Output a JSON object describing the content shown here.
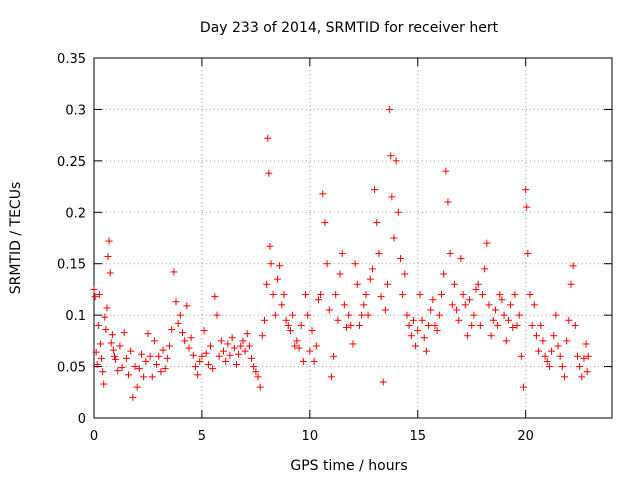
{
  "chart_data": {
    "type": "scatter",
    "title": "Day 233 of 2014, SRMTID for receiver hert",
    "xlabel": "GPS time / hours",
    "ylabel": "SRMTID / TECUs",
    "xlim": [
      0,
      24
    ],
    "ylim": [
      0,
      0.35
    ],
    "x_ticks": [
      0,
      5,
      10,
      15,
      20
    ],
    "x_tick_labels": [
      "0",
      "5",
      "10",
      "15",
      "20"
    ],
    "y_ticks": [
      0,
      0.05,
      0.1,
      0.15,
      0.2,
      0.25,
      0.3,
      0.35
    ],
    "y_tick_labels": [
      "0",
      "0.05",
      "0.1",
      "0.15",
      "0.2",
      "0.25",
      "0.3",
      "0.35"
    ],
    "grid": true,
    "marker": "+",
    "color": "#ff0000",
    "series": [
      {
        "name": "SRMTID",
        "points": [
          [
            0.0,
            0.125
          ],
          [
            0.05,
            0.118
          ],
          [
            0.1,
            0.064
          ],
          [
            0.15,
            0.052
          ],
          [
            0.2,
            0.09
          ],
          [
            0.25,
            0.12
          ],
          [
            0.3,
            0.072
          ],
          [
            0.35,
            0.058
          ],
          [
            0.4,
            0.045
          ],
          [
            0.45,
            0.033
          ],
          [
            0.5,
            0.098
          ],
          [
            0.55,
            0.086
          ],
          [
            0.6,
            0.107
          ],
          [
            0.65,
            0.157
          ],
          [
            0.7,
            0.172
          ],
          [
            0.75,
            0.141
          ],
          [
            0.8,
            0.073
          ],
          [
            0.85,
            0.081
          ],
          [
            0.9,
            0.066
          ],
          [
            0.95,
            0.06
          ],
          [
            1.0,
            0.057
          ],
          [
            1.1,
            0.046
          ],
          [
            1.2,
            0.07
          ],
          [
            1.3,
            0.049
          ],
          [
            1.4,
            0.083
          ],
          [
            1.5,
            0.058
          ],
          [
            1.6,
            0.042
          ],
          [
            1.7,
            0.065
          ],
          [
            1.8,
            0.02
          ],
          [
            1.9,
            0.05
          ],
          [
            2.0,
            0.03
          ],
          [
            2.1,
            0.048
          ],
          [
            2.2,
            0.062
          ],
          [
            2.3,
            0.04
          ],
          [
            2.4,
            0.055
          ],
          [
            2.5,
            0.082
          ],
          [
            2.6,
            0.06
          ],
          [
            2.7,
            0.04
          ],
          [
            2.8,
            0.075
          ],
          [
            2.9,
            0.052
          ],
          [
            3.0,
            0.06
          ],
          [
            3.1,
            0.045
          ],
          [
            3.2,
            0.066
          ],
          [
            3.3,
            0.048
          ],
          [
            3.4,
            0.058
          ],
          [
            3.5,
            0.07
          ],
          [
            3.6,
            0.086
          ],
          [
            3.7,
            0.142
          ],
          [
            3.8,
            0.113
          ],
          [
            3.9,
            0.092
          ],
          [
            4.0,
            0.1
          ],
          [
            4.1,
            0.083
          ],
          [
            4.2,
            0.075
          ],
          [
            4.3,
            0.109
          ],
          [
            4.4,
            0.068
          ],
          [
            4.5,
            0.078
          ],
          [
            4.6,
            0.061
          ],
          [
            4.7,
            0.05
          ],
          [
            4.8,
            0.042
          ],
          [
            4.9,
            0.055
          ],
          [
            5.0,
            0.06
          ],
          [
            5.1,
            0.085
          ],
          [
            5.2,
            0.063
          ],
          [
            5.3,
            0.052
          ],
          [
            5.4,
            0.07
          ],
          [
            5.5,
            0.048
          ],
          [
            5.6,
            0.118
          ],
          [
            5.7,
            0.1
          ],
          [
            5.8,
            0.06
          ],
          [
            5.9,
            0.075
          ],
          [
            6.0,
            0.065
          ],
          [
            6.1,
            0.055
          ],
          [
            6.2,
            0.072
          ],
          [
            6.3,
            0.061
          ],
          [
            6.4,
            0.078
          ],
          [
            6.5,
            0.068
          ],
          [
            6.6,
            0.052
          ],
          [
            6.7,
            0.062
          ],
          [
            6.8,
            0.07
          ],
          [
            6.9,
            0.075
          ],
          [
            7.0,
            0.065
          ],
          [
            7.1,
            0.082
          ],
          [
            7.2,
            0.07
          ],
          [
            7.3,
            0.058
          ],
          [
            7.4,
            0.05
          ],
          [
            7.5,
            0.045
          ],
          [
            7.6,
            0.04
          ],
          [
            7.7,
            0.03
          ],
          [
            7.8,
            0.08
          ],
          [
            7.9,
            0.095
          ],
          [
            8.0,
            0.13
          ],
          [
            8.05,
            0.272
          ],
          [
            8.1,
            0.238
          ],
          [
            8.15,
            0.167
          ],
          [
            8.2,
            0.15
          ],
          [
            8.3,
            0.12
          ],
          [
            8.4,
            0.1
          ],
          [
            8.5,
            0.135
          ],
          [
            8.6,
            0.148
          ],
          [
            8.7,
            0.11
          ],
          [
            8.8,
            0.12
          ],
          [
            8.9,
            0.095
          ],
          [
            9.0,
            0.09
          ],
          [
            9.1,
            0.085
          ],
          [
            9.2,
            0.1
          ],
          [
            9.3,
            0.07
          ],
          [
            9.4,
            0.075
          ],
          [
            9.5,
            0.068
          ],
          [
            9.6,
            0.09
          ],
          [
            9.7,
            0.055
          ],
          [
            9.8,
            0.12
          ],
          [
            9.9,
            0.1
          ],
          [
            10.0,
            0.065
          ],
          [
            10.1,
            0.085
          ],
          [
            10.2,
            0.055
          ],
          [
            10.3,
            0.07
          ],
          [
            10.4,
            0.115
          ],
          [
            10.5,
            0.12
          ],
          [
            10.6,
            0.218
          ],
          [
            10.7,
            0.19
          ],
          [
            10.8,
            0.15
          ],
          [
            10.9,
            0.105
          ],
          [
            11.0,
            0.04
          ],
          [
            11.1,
            0.06
          ],
          [
            11.2,
            0.12
          ],
          [
            11.3,
            0.095
          ],
          [
            11.4,
            0.14
          ],
          [
            11.5,
            0.16
          ],
          [
            11.6,
            0.11
          ],
          [
            11.7,
            0.088
          ],
          [
            11.8,
            0.1
          ],
          [
            11.9,
            0.09
          ],
          [
            12.0,
            0.072
          ],
          [
            12.1,
            0.15
          ],
          [
            12.2,
            0.13
          ],
          [
            12.3,
            0.09
          ],
          [
            12.4,
            0.1
          ],
          [
            12.5,
            0.11
          ],
          [
            12.6,
            0.12
          ],
          [
            12.7,
            0.1
          ],
          [
            12.8,
            0.135
          ],
          [
            12.9,
            0.145
          ],
          [
            13.0,
            0.222
          ],
          [
            13.1,
            0.19
          ],
          [
            13.2,
            0.16
          ],
          [
            13.3,
            0.118
          ],
          [
            13.4,
            0.035
          ],
          [
            13.5,
            0.105
          ],
          [
            13.6,
            0.13
          ],
          [
            13.7,
            0.3
          ],
          [
            13.75,
            0.255
          ],
          [
            13.8,
            0.215
          ],
          [
            13.9,
            0.175
          ],
          [
            14.0,
            0.25
          ],
          [
            14.1,
            0.2
          ],
          [
            14.2,
            0.155
          ],
          [
            14.3,
            0.12
          ],
          [
            14.4,
            0.14
          ],
          [
            14.5,
            0.1
          ],
          [
            14.6,
            0.09
          ],
          [
            14.7,
            0.08
          ],
          [
            14.8,
            0.095
          ],
          [
            14.9,
            0.07
          ],
          [
            15.0,
            0.085
          ],
          [
            15.1,
            0.12
          ],
          [
            15.2,
            0.095
          ],
          [
            15.3,
            0.078
          ],
          [
            15.4,
            0.065
          ],
          [
            15.5,
            0.09
          ],
          [
            15.6,
            0.105
          ],
          [
            15.7,
            0.115
          ],
          [
            15.8,
            0.09
          ],
          [
            15.9,
            0.085
          ],
          [
            16.0,
            0.1
          ],
          [
            16.1,
            0.12
          ],
          [
            16.2,
            0.14
          ],
          [
            16.3,
            0.24
          ],
          [
            16.4,
            0.21
          ],
          [
            16.5,
            0.16
          ],
          [
            16.6,
            0.11
          ],
          [
            16.7,
            0.13
          ],
          [
            16.8,
            0.105
          ],
          [
            16.9,
            0.095
          ],
          [
            17.0,
            0.155
          ],
          [
            17.1,
            0.12
          ],
          [
            17.2,
            0.11
          ],
          [
            17.3,
            0.08
          ],
          [
            17.4,
            0.115
          ],
          [
            17.5,
            0.09
          ],
          [
            17.6,
            0.1
          ],
          [
            17.7,
            0.125
          ],
          [
            17.8,
            0.13
          ],
          [
            17.9,
            0.09
          ],
          [
            18.0,
            0.12
          ],
          [
            18.1,
            0.145
          ],
          [
            18.2,
            0.17
          ],
          [
            18.3,
            0.11
          ],
          [
            18.4,
            0.08
          ],
          [
            18.5,
            0.095
          ],
          [
            18.6,
            0.105
          ],
          [
            18.7,
            0.09
          ],
          [
            18.8,
            0.12
          ],
          [
            18.9,
            0.115
          ],
          [
            19.0,
            0.1
          ],
          [
            19.1,
            0.075
          ],
          [
            19.2,
            0.095
          ],
          [
            19.3,
            0.11
          ],
          [
            19.4,
            0.088
          ],
          [
            19.5,
            0.12
          ],
          [
            19.6,
            0.09
          ],
          [
            19.7,
            0.1
          ],
          [
            19.8,
            0.06
          ],
          [
            19.9,
            0.03
          ],
          [
            20.0,
            0.222
          ],
          [
            20.05,
            0.205
          ],
          [
            20.1,
            0.16
          ],
          [
            20.2,
            0.12
          ],
          [
            20.3,
            0.09
          ],
          [
            20.4,
            0.11
          ],
          [
            20.5,
            0.08
          ],
          [
            20.6,
            0.065
          ],
          [
            20.7,
            0.09
          ],
          [
            20.8,
            0.075
          ],
          [
            20.9,
            0.06
          ],
          [
            21.0,
            0.055
          ],
          [
            21.1,
            0.05
          ],
          [
            21.2,
            0.065
          ],
          [
            21.3,
            0.08
          ],
          [
            21.4,
            0.1
          ],
          [
            21.5,
            0.07
          ],
          [
            21.6,
            0.06
          ],
          [
            21.7,
            0.05
          ],
          [
            21.8,
            0.04
          ],
          [
            21.9,
            0.075
          ],
          [
            22.0,
            0.095
          ],
          [
            22.1,
            0.13
          ],
          [
            22.2,
            0.148
          ],
          [
            22.3,
            0.09
          ],
          [
            22.4,
            0.06
          ],
          [
            22.5,
            0.05
          ],
          [
            22.6,
            0.04
          ],
          [
            22.7,
            0.058
          ],
          [
            22.8,
            0.072
          ],
          [
            22.85,
            0.045
          ],
          [
            22.9,
            0.06
          ]
        ]
      }
    ]
  }
}
